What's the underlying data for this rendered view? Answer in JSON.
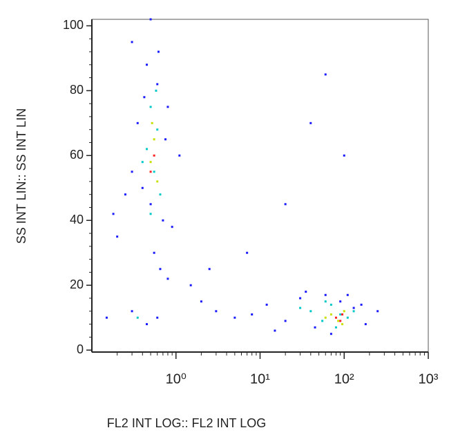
{
  "chart_data": {
    "type": "scatter",
    "x_label": "FL2 INT LOG:: FL2 INT LOG",
    "y_label": "SS INT LIN:: SS INT LIN",
    "xscale": "log",
    "xlim": [
      0.1,
      1000
    ],
    "xticks": [
      {
        "value": 1,
        "label": "10⁰"
      },
      {
        "value": 10,
        "label": "10¹"
      },
      {
        "value": 100,
        "label": "10²"
      },
      {
        "value": 1000,
        "label": "10³"
      }
    ],
    "ylim": [
      -0.6,
      102
    ],
    "yticks": [
      0,
      20,
      40,
      60,
      80,
      100
    ],
    "series": [
      {
        "color": "#1a1aff",
        "x": [
          0.3,
          0.45,
          0.6,
          0.8,
          0.35,
          0.5,
          0.7,
          0.9,
          0.4,
          0.55,
          0.65,
          0.3,
          0.75,
          0.5,
          0.62,
          0.42,
          1.1,
          0.25,
          0.2,
          0.18,
          0.3,
          0.45,
          0.6,
          12,
          20,
          30,
          45,
          60,
          90,
          130,
          180,
          250,
          15,
          35,
          70,
          110,
          160,
          8,
          5,
          3,
          2,
          1.5,
          40,
          100,
          60,
          20,
          7,
          2.5,
          0.8,
          0.15
        ],
        "y": [
          95,
          88,
          82,
          75,
          70,
          45,
          40,
          38,
          50,
          30,
          25,
          55,
          65,
          102,
          92,
          78,
          60,
          48,
          35,
          42,
          12,
          8,
          10,
          14,
          9,
          16,
          7,
          17,
          15,
          13,
          8,
          12,
          6,
          18,
          5,
          17,
          14,
          11,
          10,
          12,
          15,
          20,
          70,
          60,
          85,
          45,
          30,
          25,
          22,
          10
        ]
      },
      {
        "color": "#00c8c8",
        "x": [
          0.5,
          0.6,
          0.45,
          0.55,
          0.65,
          0.5,
          0.58,
          0.4,
          0.35,
          40,
          55,
          70,
          90,
          110,
          30,
          80,
          60,
          130
        ],
        "y": [
          75,
          68,
          62,
          55,
          48,
          42,
          80,
          58,
          10,
          12,
          9,
          14,
          11,
          10,
          13,
          7,
          15,
          12
        ]
      },
      {
        "color": "#c8e000",
        "x": [
          0.55,
          0.5,
          0.6,
          0.52,
          70,
          85,
          100,
          60,
          95
        ],
        "y": [
          65,
          58,
          52,
          70,
          11,
          9,
          12,
          10,
          8
        ]
      },
      {
        "color": "#ff2020",
        "x": [
          0.55,
          0.5,
          80,
          95,
          90
        ],
        "y": [
          60,
          55,
          10,
          11,
          9
        ]
      }
    ]
  }
}
